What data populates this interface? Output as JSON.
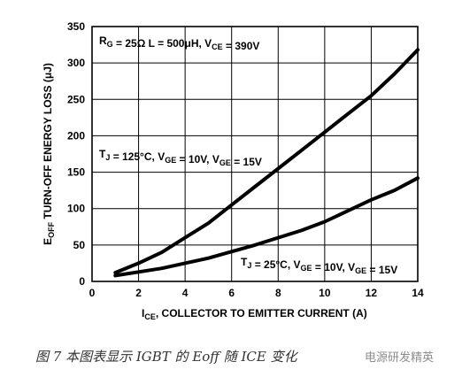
{
  "chart_data": {
    "type": "line",
    "xlabel": {
      "main": "I",
      "sub": "CE",
      "rest": ", COLLECTOR TO EMITTER CURRENT (A)"
    },
    "ylabel": {
      "pre": "E",
      "sub": "OFF",
      "rest": " TURN-OFF ENERGY LOSS (μJ)"
    },
    "xlim": [
      0,
      14
    ],
    "ylim": [
      0,
      350
    ],
    "xticks": [
      0,
      2,
      4,
      6,
      8,
      10,
      12,
      14
    ],
    "yticks": [
      0,
      50,
      100,
      150,
      200,
      250,
      300,
      350
    ],
    "grid": true,
    "series": [
      {
        "x": [
          1,
          2,
          3,
          4,
          5,
          6,
          7,
          8,
          9,
          10,
          11,
          12,
          13,
          14
        ],
        "values": [
          12,
          25,
          40,
          60,
          80,
          105,
          130,
          155,
          180,
          205,
          230,
          255,
          285,
          318
        ]
      },
      {
        "x": [
          1,
          2,
          3,
          4,
          5,
          6,
          7,
          8,
          9,
          10,
          11,
          12,
          13,
          14
        ],
        "values": [
          8,
          13,
          18,
          25,
          32,
          41,
          50,
          60,
          70,
          82,
          97,
          112,
          125,
          142
        ]
      }
    ],
    "annotations": {
      "top": [
        {
          "t": "R",
          "s": "G"
        },
        {
          "t": " = 25Ω  L = 500μH, V"
        },
        {
          "t": "",
          "s": "CE"
        },
        {
          "t": " = 390V"
        }
      ],
      "mid": [
        {
          "t": "T",
          "s": "J"
        },
        {
          "t": " = 125°C, V"
        },
        {
          "t": "",
          "s": "GE"
        },
        {
          "t": " = 10V, V"
        },
        {
          "t": "",
          "s": "GE"
        },
        {
          "t": " = 15V"
        }
      ],
      "bottom": [
        {
          "t": "T",
          "s": "J"
        },
        {
          "t": " = 25°C, V"
        },
        {
          "t": "",
          "s": "GE"
        },
        {
          "t": " = 10V, V"
        },
        {
          "t": "",
          "s": "GE"
        },
        {
          "t": " = 15V"
        }
      ]
    }
  },
  "caption": "图 7 本图表显示 IGBT 的 Eoff 随 ICE 变化",
  "watermark": "电源研发精英"
}
